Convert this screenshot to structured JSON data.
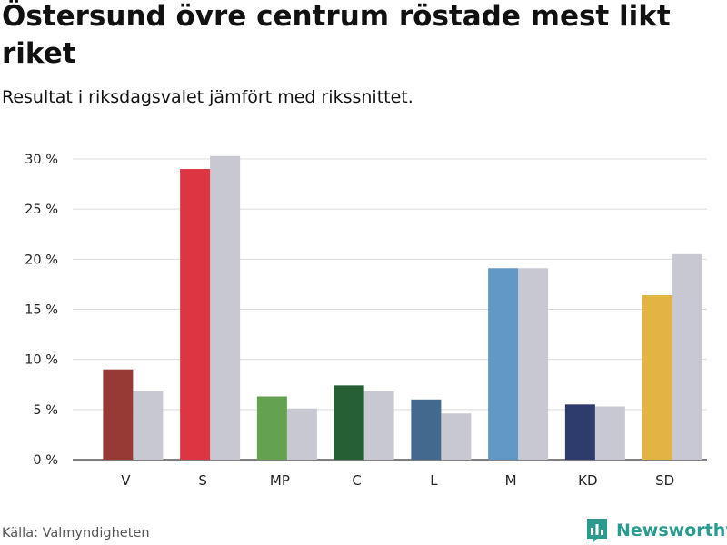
{
  "header": {
    "title": "Östersund övre centrum röstade mest likt riket",
    "subtitle": "Resultat i riksdagsvalet jämfört med rikssnittet."
  },
  "footer": {
    "source": "Källa: Valmyndigheten",
    "brand": "Newsworthy",
    "brand_icon": "bar-chart-logo-icon",
    "brand_color": "#2b9a8f"
  },
  "chart_data": {
    "type": "bar",
    "title": "Östersund övre centrum röstade mest likt riket",
    "subtitle": "Resultat i riksdagsvalet jämfört med rikssnittet.",
    "categories": [
      "V",
      "S",
      "MP",
      "C",
      "L",
      "M",
      "KD",
      "SD"
    ],
    "series": [
      {
        "values": [
          9.0,
          29.0,
          6.3,
          7.4,
          6.0,
          19.1,
          5.5,
          16.4
        ],
        "colors": [
          "#973a36",
          "#dd3642",
          "#64a151",
          "#265f34",
          "#44698f",
          "#6298c6",
          "#2e3b6d",
          "#e1b443"
        ]
      },
      {
        "values": [
          6.8,
          30.3,
          5.1,
          6.8,
          4.6,
          19.1,
          5.3,
          20.5
        ],
        "color": "#c8c8d2"
      }
    ],
    "yticks": [
      0,
      5,
      10,
      15,
      20,
      25,
      30
    ],
    "ytick_suffix": " %",
    "ylim": [
      0,
      30
    ],
    "grid": true,
    "xlabel": "",
    "ylabel": ""
  }
}
